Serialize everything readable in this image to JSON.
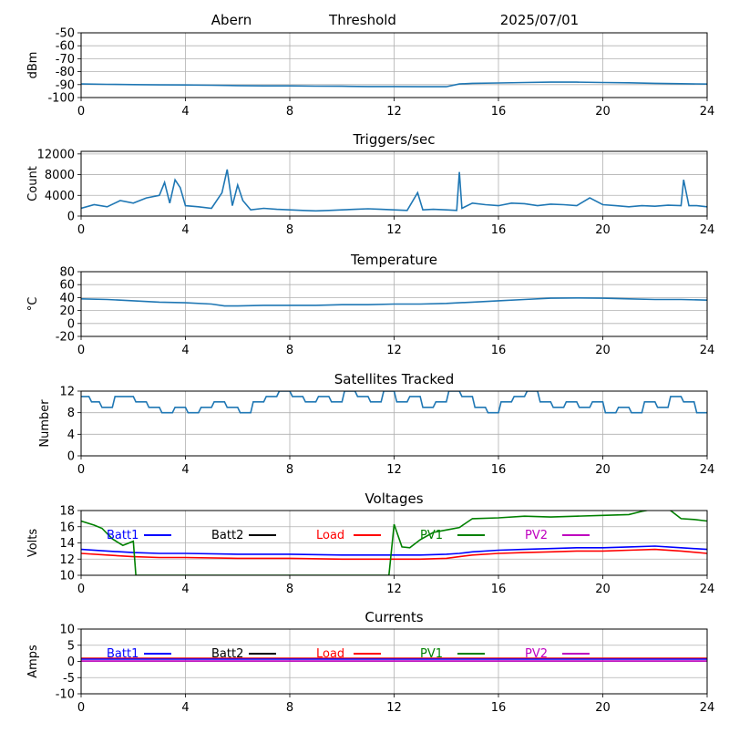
{
  "header": {
    "station": "Abern",
    "mode": "Threshold",
    "date": "2025/07/01"
  },
  "colors": {
    "series_default": "#1f77b4",
    "batt1": "#0000ff",
    "batt2": "#000000",
    "load": "#ff0000",
    "pv1": "#008000",
    "pv2": "#bf00bf",
    "grid": "#b0b0b0"
  },
  "chart_data": [
    {
      "type": "line",
      "title": "",
      "ylabel": "dBm",
      "xlim": [
        0,
        24
      ],
      "ylim": [
        -100,
        -50
      ],
      "xticks": [
        0,
        4,
        8,
        12,
        16,
        20,
        24
      ],
      "yticks": [
        -100,
        -90,
        -80,
        -70,
        -60,
        -50
      ],
      "series": [
        {
          "x": [
            0,
            1,
            2,
            3,
            4,
            5,
            6,
            7,
            8,
            9,
            10,
            11,
            12,
            13,
            14,
            14.5,
            15,
            16,
            17,
            18,
            19,
            20,
            21,
            22,
            23,
            24
          ],
          "values": [
            -89.5,
            -89.8,
            -90,
            -90.2,
            -90.3,
            -90.5,
            -90.8,
            -91,
            -91,
            -91.2,
            -91.3,
            -91.5,
            -91.5,
            -91.6,
            -91.6,
            -89.5,
            -89,
            -88.7,
            -88.4,
            -88.1,
            -88.1,
            -88.4,
            -88.6,
            -89,
            -89.3,
            -89.6
          ]
        }
      ]
    },
    {
      "type": "line",
      "title": "Triggers/sec",
      "ylabel": "Count",
      "xlim": [
        0,
        24
      ],
      "ylim": [
        0,
        12500
      ],
      "xticks": [
        0,
        4,
        8,
        12,
        16,
        20,
        24
      ],
      "yticks": [
        0,
        4000,
        8000,
        12000
      ],
      "series": [
        {
          "x": [
            0,
            0.5,
            1,
            1.5,
            2,
            2.5,
            3,
            3.2,
            3.4,
            3.6,
            3.8,
            4,
            4.5,
            5,
            5.4,
            5.6,
            5.8,
            6,
            6.2,
            6.5,
            7,
            7.5,
            8,
            8.5,
            9,
            9.5,
            10,
            10.5,
            11,
            11.5,
            12,
            12.5,
            12.9,
            13.1,
            13.5,
            14,
            14.4,
            14.5,
            14.6,
            15,
            15.5,
            16,
            16.5,
            17,
            17.5,
            18,
            18.5,
            19,
            19.5,
            20,
            20.5,
            21,
            21.5,
            22,
            22.5,
            23,
            23.1,
            23.3,
            23.6,
            24
          ],
          "values": [
            1500,
            2200,
            1800,
            3000,
            2500,
            3500,
            4000,
            6500,
            2500,
            7000,
            5500,
            2000,
            1800,
            1500,
            4500,
            9000,
            2000,
            6000,
            3000,
            1200,
            1500,
            1300,
            1200,
            1100,
            1000,
            1100,
            1200,
            1300,
            1400,
            1300,
            1200,
            1100,
            4500,
            1200,
            1300,
            1200,
            1100,
            8500,
            1500,
            2500,
            2200,
            2000,
            2500,
            2400,
            2000,
            2300,
            2200,
            2000,
            3500,
            2200,
            2000,
            1800,
            2000,
            1900,
            2100,
            2000,
            7000,
            2000,
            2000,
            1800
          ]
        }
      ]
    },
    {
      "type": "line",
      "title": "Temperature",
      "ylabel": "°C",
      "xlim": [
        0,
        24
      ],
      "ylim": [
        -20,
        80
      ],
      "xticks": [
        0,
        4,
        8,
        12,
        16,
        20,
        24
      ],
      "yticks": [
        -20,
        0,
        20,
        40,
        60,
        80
      ],
      "series": [
        {
          "x": [
            0,
            1,
            2,
            3,
            4,
            5,
            5.5,
            6,
            7,
            8,
            9,
            10,
            11,
            12,
            13,
            14,
            15,
            16,
            17,
            18,
            19,
            20,
            21,
            22,
            23,
            24
          ],
          "values": [
            38,
            37,
            35,
            33,
            32,
            30,
            27,
            27,
            28,
            28,
            28,
            29,
            29,
            30,
            30,
            31,
            33,
            35,
            37,
            39,
            39.5,
            39,
            38,
            37,
            37,
            36
          ]
        }
      ]
    },
    {
      "type": "line",
      "title": "Satellites Tracked",
      "ylabel": "Number",
      "xlim": [
        0,
        24
      ],
      "ylim": [
        0,
        12
      ],
      "xticks": [
        0,
        4,
        8,
        12,
        16,
        20,
        24
      ],
      "yticks": [
        0,
        4,
        8,
        12
      ],
      "series": [
        {
          "x": [
            0,
            0.3,
            0.4,
            0.7,
            0.8,
            1.2,
            1.3,
            2,
            2.1,
            2.5,
            2.6,
            3,
            3.1,
            3.5,
            3.6,
            4,
            4.1,
            4.5,
            4.6,
            5,
            5.1,
            5.5,
            5.6,
            6,
            6.1,
            6.5,
            6.6,
            7,
            7.1,
            7.5,
            7.6,
            8,
            8.1,
            8.5,
            8.6,
            9,
            9.1,
            9.5,
            9.6,
            10,
            10.1,
            10.5,
            10.6,
            11,
            11.1,
            11.5,
            11.6,
            12,
            12.1,
            12.5,
            12.6,
            13,
            13.1,
            13.5,
            13.6,
            14,
            14.1,
            14.5,
            14.6,
            15,
            15.1,
            15.5,
            15.6,
            16,
            16.1,
            16.5,
            16.6,
            17,
            17.1,
            17.5,
            17.6,
            18,
            18.1,
            18.5,
            18.6,
            19,
            19.1,
            19.5,
            19.6,
            20,
            20.1,
            20.5,
            20.6,
            21,
            21.1,
            21.5,
            21.6,
            22,
            22.1,
            22.5,
            22.6,
            23,
            23.1,
            23.5,
            23.6,
            24
          ],
          "values": [
            11,
            11,
            10,
            10,
            9,
            9,
            11,
            11,
            10,
            10,
            9,
            9,
            8,
            8,
            9,
            9,
            8,
            8,
            9,
            9,
            10,
            10,
            9,
            9,
            8,
            8,
            10,
            10,
            11,
            11,
            12,
            12,
            11,
            11,
            10,
            10,
            11,
            11,
            10,
            10,
            12,
            12,
            11,
            11,
            10,
            10,
            12,
            12,
            10,
            10,
            11,
            11,
            9,
            9,
            10,
            10,
            12,
            12,
            11,
            11,
            9,
            9,
            8,
            8,
            10,
            10,
            11,
            11,
            12,
            12,
            10,
            10,
            9,
            9,
            10,
            10,
            9,
            9,
            10,
            10,
            8,
            8,
            9,
            9,
            8,
            8,
            10,
            10,
            9,
            9,
            11,
            11,
            10,
            10,
            8,
            8
          ]
        }
      ]
    },
    {
      "type": "line",
      "title": "Voltages",
      "ylabel": "Volts",
      "xlim": [
        0,
        24
      ],
      "ylim": [
        10,
        18
      ],
      "xticks": [
        0,
        4,
        8,
        12,
        16,
        20,
        24
      ],
      "yticks": [
        10,
        12,
        14,
        16,
        18
      ],
      "legend": [
        "Batt1",
        "Batt2",
        "Load",
        "PV1",
        "PV2"
      ],
      "series": [
        {
          "name": "Batt1",
          "color": "#0000ff",
          "x": [
            0,
            1,
            2,
            3,
            4,
            6,
            8,
            10,
            12,
            13,
            14,
            14.5,
            15,
            16,
            17,
            18,
            19,
            20,
            21,
            22,
            23,
            24
          ],
          "values": [
            13.2,
            13.0,
            12.8,
            12.7,
            12.7,
            12.6,
            12.6,
            12.5,
            12.5,
            12.5,
            12.6,
            12.7,
            12.9,
            13.1,
            13.2,
            13.3,
            13.4,
            13.4,
            13.5,
            13.6,
            13.4,
            13.2
          ]
        },
        {
          "name": "Load",
          "color": "#ff0000",
          "x": [
            0,
            1,
            2,
            3,
            4,
            6,
            8,
            10,
            12,
            13,
            14,
            14.5,
            15,
            16,
            17,
            18,
            19,
            20,
            21,
            22,
            23,
            24
          ],
          "values": [
            12.7,
            12.5,
            12.3,
            12.2,
            12.2,
            12.1,
            12.1,
            12.0,
            12.0,
            12.0,
            12.1,
            12.3,
            12.5,
            12.7,
            12.8,
            12.9,
            13.0,
            13.0,
            13.1,
            13.2,
            13.0,
            12.7
          ]
        },
        {
          "name": "PV1",
          "color": "#008000",
          "x": [
            0,
            0.5,
            0.8,
            1.2,
            1.6,
            2.0,
            2.1,
            11.8,
            12.0,
            12.3,
            12.6,
            13,
            13.5,
            14,
            14.5,
            15,
            16,
            17,
            18,
            19,
            20,
            21,
            21.5,
            22,
            22.3,
            22.6,
            23,
            23.5,
            24
          ],
          "values": [
            16.7,
            16.2,
            15.8,
            14.5,
            13.7,
            14.2,
            10,
            10,
            16.3,
            13.5,
            13.4,
            14.4,
            15.3,
            15.6,
            15.9,
            17.0,
            17.1,
            17.3,
            17.2,
            17.3,
            17.4,
            17.5,
            17.9,
            18.2,
            18.3,
            18.0,
            17.0,
            16.9,
            16.7
          ]
        }
      ]
    },
    {
      "type": "line",
      "title": "Currents",
      "ylabel": "Amps",
      "xlim": [
        0,
        24
      ],
      "ylim": [
        -10,
        10
      ],
      "xticks": [
        0,
        4,
        8,
        12,
        16,
        20,
        24
      ],
      "yticks": [
        -10,
        -5,
        0,
        5,
        10
      ],
      "legend": [
        "Batt1",
        "Batt2",
        "Load",
        "PV1",
        "PV2"
      ],
      "series": [
        {
          "name": "Load",
          "color": "#ff0000",
          "x": [
            0,
            24
          ],
          "values": [
            1.0,
            1.0
          ]
        },
        {
          "name": "Batt1",
          "color": "#0000ff",
          "x": [
            0,
            24
          ],
          "values": [
            0.7,
            0.7
          ]
        },
        {
          "name": "PV2",
          "color": "#bf00bf",
          "x": [
            0,
            24
          ],
          "values": [
            0.1,
            0.1
          ]
        }
      ]
    }
  ]
}
